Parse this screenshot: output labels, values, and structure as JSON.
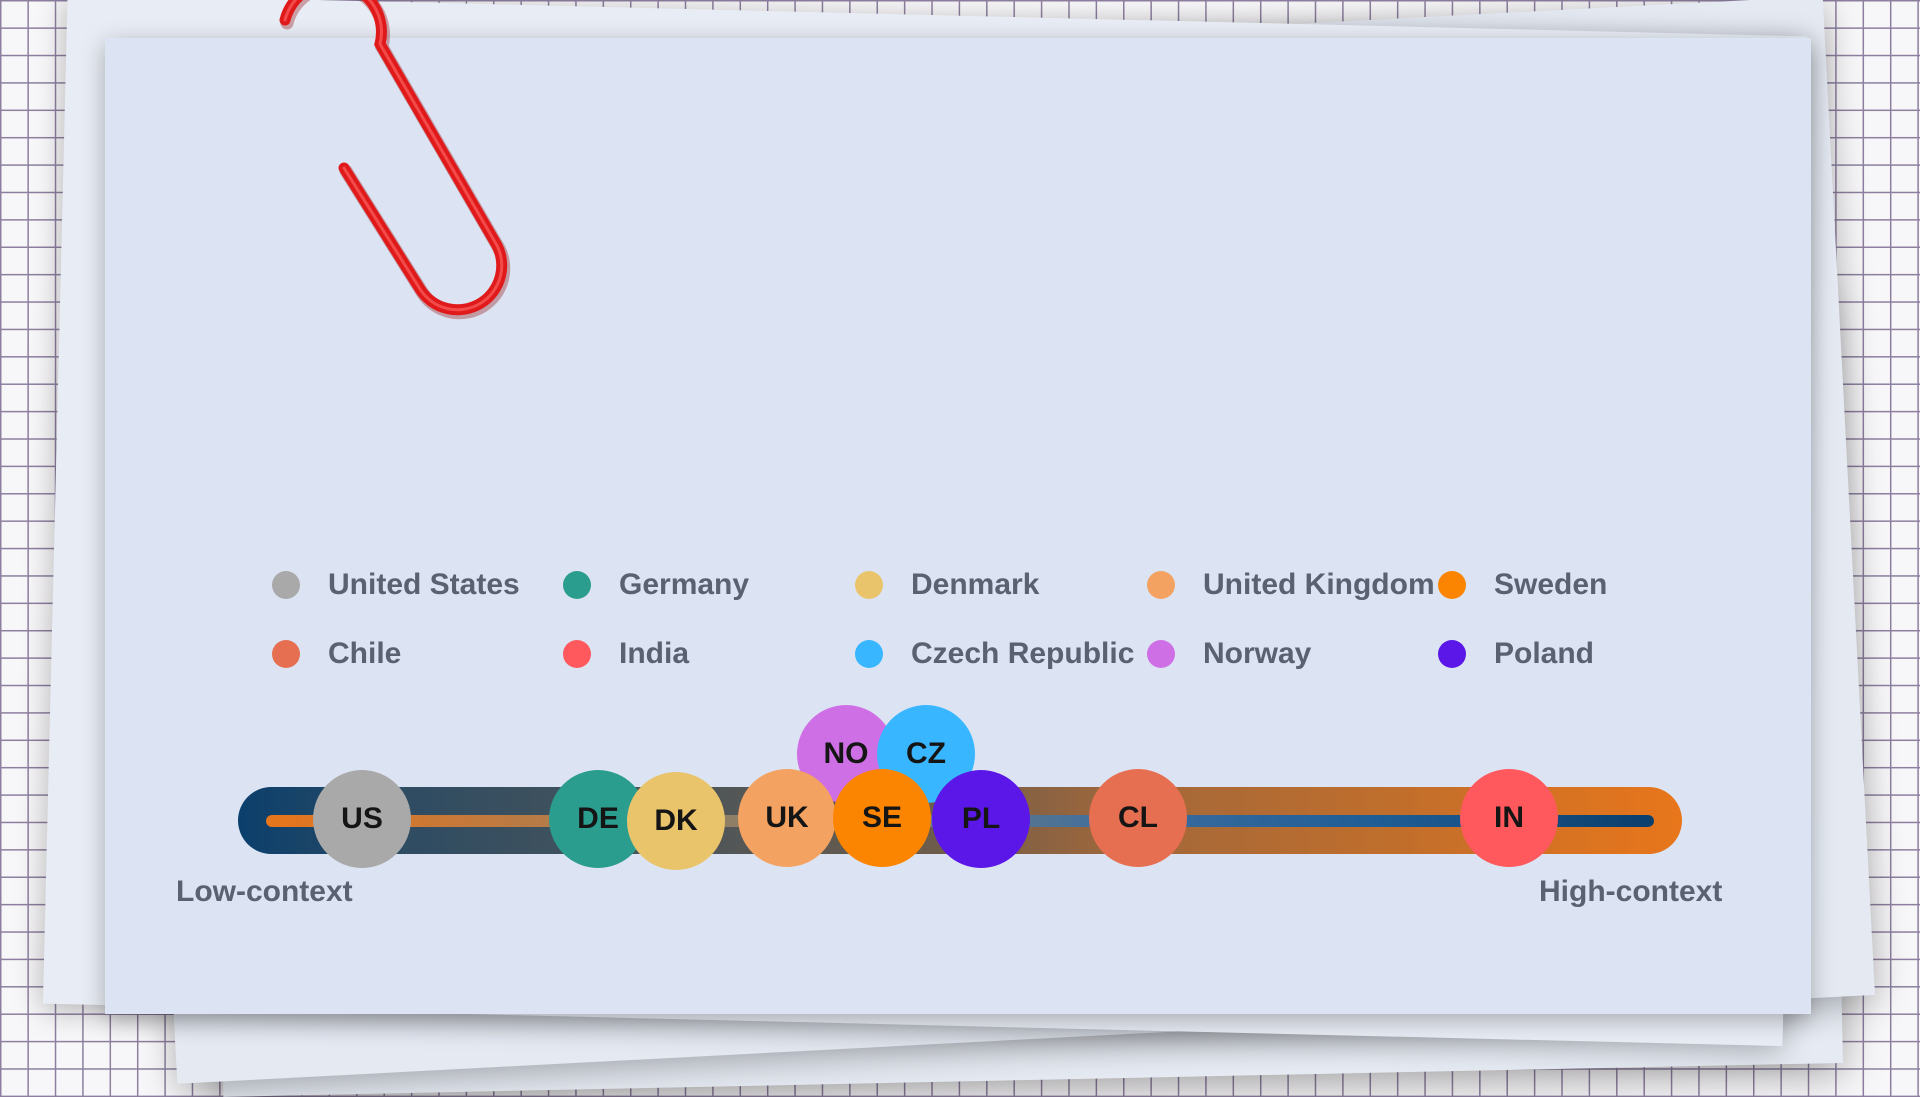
{
  "scale": {
    "low_label": "Low-context",
    "high_label": "High-context"
  },
  "legend": [
    {
      "name": "United States",
      "color": "#a9a9a9"
    },
    {
      "name": "Germany",
      "color": "#2a9d8f"
    },
    {
      "name": "Denmark",
      "color": "#e9c46a"
    },
    {
      "name": "United Kingdom",
      "color": "#f4a261"
    },
    {
      "name": "Sweden",
      "color": "#fb8500"
    },
    {
      "name": "Chile",
      "color": "#e76f51"
    },
    {
      "name": "India",
      "color": "#ff595e"
    },
    {
      "name": "Czech Republic",
      "color": "#38b6ff"
    },
    {
      "name": "Norway",
      "color": "#cf6fe6"
    },
    {
      "name": "Poland",
      "color": "#5b16e8"
    }
  ],
  "nodes": [
    {
      "code": "NO",
      "color": "#cf6fe6"
    },
    {
      "code": "CZ",
      "color": "#38b6ff"
    },
    {
      "code": "US",
      "color": "#a9a9a9"
    },
    {
      "code": "DE",
      "color": "#2a9d8f"
    },
    {
      "code": "DK",
      "color": "#e9c46a"
    },
    {
      "code": "UK",
      "color": "#f4a261"
    },
    {
      "code": "SE",
      "color": "#fb8500"
    },
    {
      "code": "PL",
      "color": "#5b16e8"
    },
    {
      "code": "CL",
      "color": "#e76f51"
    },
    {
      "code": "IN",
      "color": "#ff595e"
    }
  ]
}
